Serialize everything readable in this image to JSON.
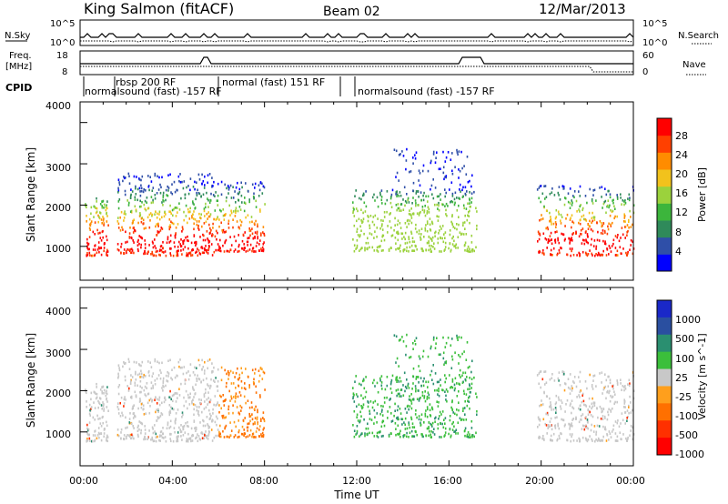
{
  "header": {
    "title": "King Salmon (fitACF)",
    "beam": "Beam 02",
    "date": "12/Mar/2013"
  },
  "strip1": {
    "left_label": "N.Sky",
    "right_label": "N.Search",
    "left_ticks": [
      "10^5",
      "10^0"
    ],
    "right_ticks": [
      "10^5",
      "10^0"
    ]
  },
  "strip2": {
    "left_label_1": "Freq.",
    "left_label_2": "[MHz]",
    "right_label": "Nave",
    "left_ticks": [
      "18",
      "8"
    ],
    "right_ticks": [
      "60",
      "0"
    ]
  },
  "cpid": {
    "label": "CPID",
    "segments": [
      {
        "text": "normalsound (fast) -157 RF"
      },
      {
        "text": "rbsp 200 RF"
      },
      {
        "text": "normal (fast) 151 RF"
      },
      {
        "text": "normalsound (fast) -157 RF"
      }
    ]
  },
  "colors": {
    "power": [
      "#0000ff",
      "#2f4fa8",
      "#2f8a5a",
      "#3cb53c",
      "#9bd23c",
      "#f2c21c",
      "#ff8c00",
      "#ff4000",
      "#ff0000"
    ],
    "velocity_positive": [
      "#1a28c8",
      "#2a4fa0",
      "#2a8f70",
      "#3bbf3b"
    ],
    "velocity_low": "#c8c8c8",
    "velocity_negative": [
      "#ff9f1c",
      "#ff7000",
      "#ff3000",
      "#ff0000"
    ]
  },
  "chart_data": [
    {
      "type": "heatmap",
      "panel": "power",
      "ylabel": "Slant Range [km]",
      "yticks": [
        "1000",
        "2000",
        "3000",
        "4000"
      ],
      "ylim": [
        180,
        4500
      ],
      "colorbar": {
        "label": "Power [dB]",
        "ticks": [
          "4",
          "8",
          "12",
          "16",
          "20",
          "24",
          "28"
        ],
        "range": [
          0,
          30
        ]
      }
    },
    {
      "type": "heatmap",
      "panel": "velocity",
      "ylabel": "Slant Range [km]",
      "yticks": [
        "1000",
        "2000",
        "3000",
        "4000"
      ],
      "ylim": [
        180,
        4500
      ],
      "colorbar": {
        "label": "Velocity [m s^-1]",
        "ticks": [
          "1000",
          "500",
          "100",
          "25",
          "-25",
          "-100",
          "-500",
          "-1000"
        ]
      }
    }
  ],
  "xaxis": {
    "label": "Time UT",
    "ticks": [
      "00:00",
      "04:00",
      "08:00",
      "12:00",
      "16:00",
      "20:00",
      "00:00"
    ]
  }
}
